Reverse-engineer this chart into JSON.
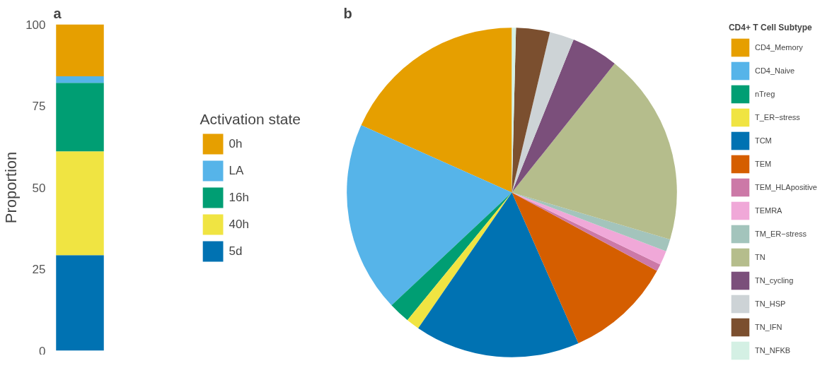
{
  "chart_data": [
    {
      "type": "bar",
      "title": "a",
      "stacked": true,
      "categories": [
        null
      ],
      "ylabel": "Proportion",
      "ylim": [
        0,
        100
      ],
      "yticks": [
        0,
        25,
        50,
        75,
        100
      ],
      "tick_labels": "y",
      "legend_title": "Activation state",
      "legend": "right",
      "series": [
        {
          "name": "5d",
          "color": "#0072b2",
          "values": [
            29.3
          ]
        },
        {
          "name": "40h",
          "color": "#f0e442",
          "values": [
            31.8
          ]
        },
        {
          "name": "16h",
          "color": "#009e73",
          "values": [
            21.0
          ]
        },
        {
          "name": "LA",
          "color": "#56b4e9",
          "values": [
            2.0
          ]
        },
        {
          "name": "0h",
          "color": "#e69f00",
          "values": [
            15.9
          ]
        }
      ]
    },
    {
      "type": "pie",
      "title": "b",
      "legend_title": "CD4+ T Cell Subtype",
      "legend": "right",
      "categories": [
        "CD4_Memory",
        "CD4_Naive",
        "nTreg",
        "T_ER−stress",
        "TCM",
        "TEM",
        "TEM_HLApositive",
        "TEMRA",
        "TM_ER−stress",
        "TN",
        "TN_cycling",
        "TN_HSP",
        "TN_IFN",
        "TN_NFKB"
      ],
      "values": [
        18.3,
        18.7,
        2.1,
        1.3,
        16.2,
        10.5,
        0.7,
        1.4,
        1.2,
        18.9,
        4.6,
        2.4,
        3.3,
        0.4
      ],
      "colors": [
        "#e69f00",
        "#56b4e9",
        "#009e73",
        "#f0e442",
        "#0072b2",
        "#d55e00",
        "#cc79a7",
        "#f0a8d8",
        "#a3c4bc",
        "#b5bd8c",
        "#7b4f7b",
        "#cdd3d6",
        "#7b4f2f",
        "#d4f0e4"
      ]
    }
  ]
}
